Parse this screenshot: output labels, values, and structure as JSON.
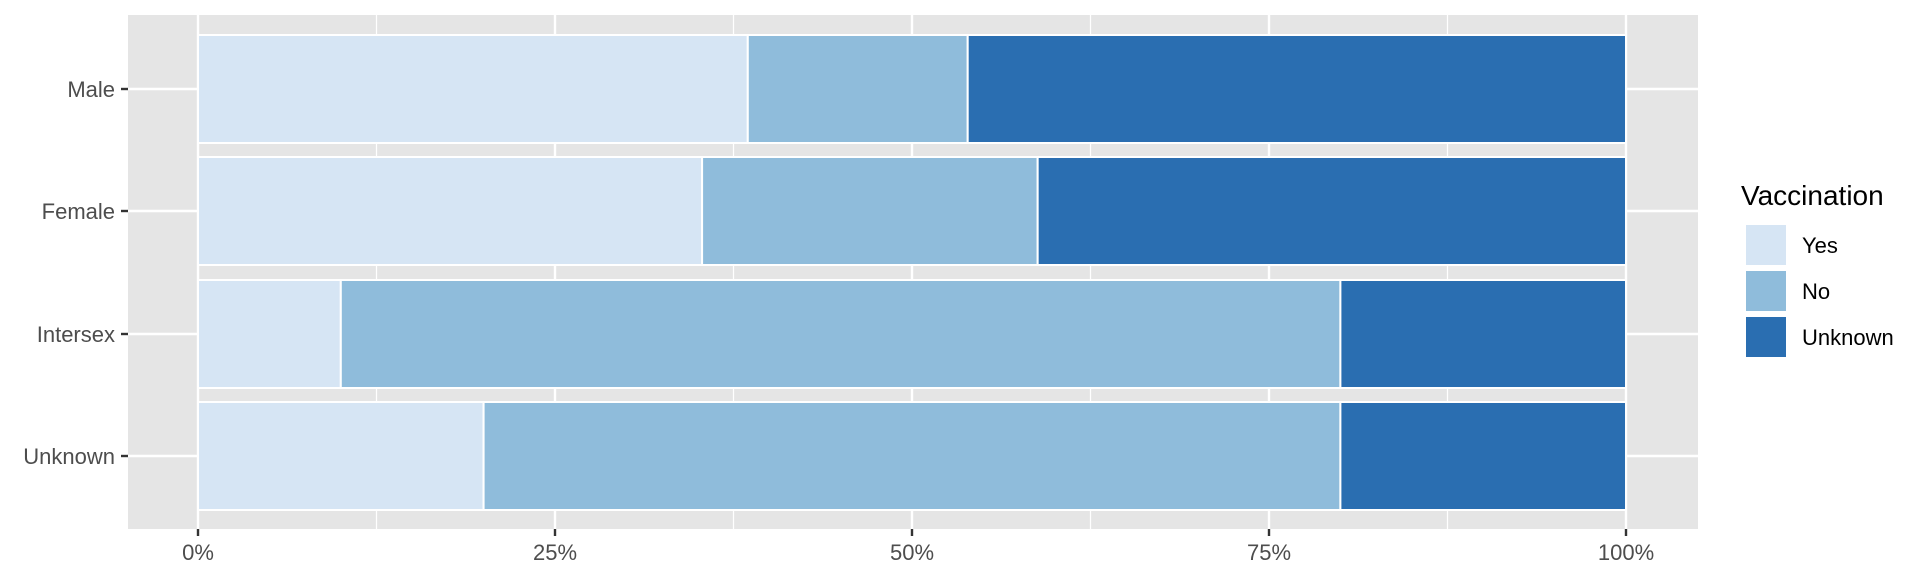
{
  "chart_data": {
    "type": "bar",
    "orientation": "horizontal",
    "stacked": "percent",
    "categories": [
      "Male",
      "Female",
      "Intersex",
      "Unknown"
    ],
    "series": [
      {
        "name": "Yes",
        "values": [
          38.5,
          35.3,
          10.0,
          20.0
        ]
      },
      {
        "name": "No",
        "values": [
          15.4,
          23.5,
          70.0,
          60.0
        ]
      },
      {
        "name": "Unknown",
        "values": [
          46.1,
          41.2,
          20.0,
          20.0
        ]
      }
    ],
    "xlim": [
      0,
      100
    ],
    "x_ticks": [
      0,
      25,
      50,
      75,
      100
    ],
    "x_tick_labels": [
      "0%",
      "25%",
      "50%",
      "75%",
      "100%"
    ],
    "title": "",
    "xlabel": "",
    "ylabel": "",
    "grid": true,
    "legend": {
      "title": "Vaccination",
      "position": "right"
    }
  },
  "colors": {
    "panel_background": "#e5e5e5",
    "grid": "#ffffff",
    "series": [
      "#d6e5f4",
      "#8fbcdb",
      "#2a6eb1"
    ]
  }
}
